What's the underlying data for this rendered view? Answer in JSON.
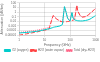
{
  "chart_data": {
    "type": "line",
    "xlabel": "Frequency (GHz)",
    "ylabel": "Attenuation (dB/km)",
    "log": true,
    "x": [
      1,
      2,
      3,
      5,
      7,
      10,
      15,
      20,
      22,
      25,
      30,
      40,
      50,
      60,
      70,
      80,
      90,
      100,
      118,
      130,
      150,
      183,
      200,
      250,
      300,
      400,
      500,
      600,
      700,
      800,
      900,
      1000
    ],
    "series": [
      {
        "name": "O2 (oxygen)",
        "color": "#00cccc",
        "line_style": "solid",
        "values": [
          3e-05,
          4e-05,
          5e-05,
          7e-05,
          0.0001,
          0.00015,
          0.00025,
          0.0004,
          0.0005,
          0.0006,
          0.0007,
          0.001,
          0.002,
          15.0,
          0.8,
          0.04,
          0.02,
          0.012,
          0.8,
          0.05,
          0.02,
          0.015,
          0.013,
          0.012,
          0.012,
          0.015,
          0.02,
          0.03,
          0.05,
          0.08,
          0.12,
          0.2
        ]
      },
      {
        "name": "H2O (water vapour)",
        "color": "#ff4444",
        "line_style": "dashed",
        "values": [
          1e-05,
          2e-05,
          3e-05,
          5e-05,
          8e-05,
          0.00012,
          0.0002,
          0.05,
          0.18,
          0.07,
          0.03,
          0.01,
          0.008,
          0.007,
          0.008,
          0.009,
          0.01,
          0.012,
          0.015,
          0.018,
          0.025,
          28.0,
          1.5,
          0.15,
          0.08,
          0.1,
          0.2,
          0.5,
          1.0,
          2.0,
          3.5,
          6.0
        ]
      },
      {
        "name": "Total (dry+H2O)",
        "color": "#ff6688",
        "line_style": "dotted",
        "values": [
          4e-05,
          6e-05,
          8e-05,
          0.00012,
          0.00018,
          0.00027,
          0.00045,
          0.051,
          0.182,
          0.072,
          0.032,
          0.012,
          0.01,
          15.0,
          0.81,
          0.05,
          0.03,
          0.024,
          0.815,
          0.068,
          0.045,
          28.0,
          1.51,
          0.162,
          0.092,
          0.115,
          0.22,
          0.53,
          1.05,
          2.08,
          3.62,
          6.2
        ]
      }
    ],
    "xlim": [
      1,
      1000
    ],
    "ylim": [
      1e-05,
      100
    ],
    "xticks": [
      1,
      10,
      100,
      1000
    ],
    "yticks": [
      1e-05,
      0.0001,
      0.001,
      0.01,
      0.1,
      1,
      10,
      100
    ],
    "grid": true,
    "legend": "lower right"
  }
}
